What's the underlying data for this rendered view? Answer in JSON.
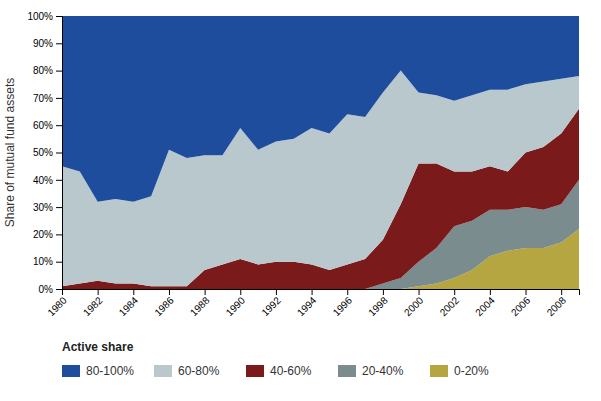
{
  "chart_data": {
    "type": "area",
    "stacked": true,
    "ylabel": "Share of mutual fund assets",
    "legend_title": "Active share",
    "legend": "bottom",
    "grid": false,
    "x": [
      1980,
      1981,
      1982,
      1983,
      1984,
      1985,
      1986,
      1987,
      1988,
      1989,
      1990,
      1991,
      1992,
      1993,
      1994,
      1995,
      1996,
      1997,
      1998,
      1999,
      2000,
      2001,
      2002,
      2003,
      2004,
      2005,
      2006,
      2007,
      2008,
      2009
    ],
    "series": [
      {
        "name": "0-20%",
        "color": "#b5a642",
        "values": [
          0,
          0,
          0,
          0,
          0,
          0,
          0,
          0,
          0,
          0,
          0,
          0,
          0,
          0,
          0,
          0,
          0,
          0,
          0,
          0,
          1,
          2,
          4,
          7,
          12,
          14,
          15,
          15,
          17,
          22
        ]
      },
      {
        "name": "20-40%",
        "color": "#7a8c8e",
        "values": [
          0,
          0,
          0,
          0,
          0,
          0,
          0,
          0,
          0,
          0,
          0,
          0,
          0,
          0,
          0,
          0,
          0,
          0,
          2,
          4,
          9,
          13,
          19,
          18,
          17,
          15,
          15,
          14,
          14,
          18
        ]
      },
      {
        "name": "40-60%",
        "color": "#7b1a1a",
        "values": [
          1,
          2,
          3,
          2,
          2,
          1,
          1,
          1,
          7,
          9,
          11,
          9,
          10,
          10,
          9,
          7,
          9,
          11,
          16,
          27,
          36,
          31,
          20,
          18,
          16,
          14,
          20,
          23,
          26,
          26
        ]
      },
      {
        "name": "60-80%",
        "color": "#b8c8cc",
        "values": [
          44,
          41,
          29,
          31,
          30,
          33,
          50,
          47,
          42,
          40,
          48,
          42,
          44,
          45,
          50,
          50,
          55,
          52,
          54,
          49,
          26,
          25,
          26,
          28,
          28,
          30,
          25,
          24,
          20,
          12
        ]
      },
      {
        "name": "80-100%",
        "color": "#1e4d9e",
        "values": [
          55,
          57,
          68,
          67,
          68,
          66,
          49,
          52,
          51,
          51,
          41,
          49,
          46,
          45,
          41,
          43,
          36,
          37,
          28,
          20,
          28,
          29,
          31,
          29,
          27,
          27,
          25,
          24,
          23,
          22
        ]
      }
    ],
    "xlim": [
      1980,
      2009
    ],
    "xticks": [
      1980,
      1982,
      1984,
      1986,
      1988,
      1990,
      1992,
      1994,
      1996,
      1998,
      2000,
      2002,
      2004,
      2006,
      2008
    ],
    "ylim": [
      0,
      100
    ],
    "yticks": [
      {
        "value": 0,
        "label": "0%"
      },
      {
        "value": 10,
        "label": "10%"
      },
      {
        "value": 20,
        "label": "20%"
      },
      {
        "value": 30,
        "label": "30%"
      },
      {
        "value": 40,
        "label": "40%"
      },
      {
        "value": 50,
        "label": "50%"
      },
      {
        "value": 60,
        "label": "60%"
      },
      {
        "value": 70,
        "label": "70%"
      },
      {
        "value": 80,
        "label": "80%"
      },
      {
        "value": 90,
        "label": "90%"
      },
      {
        "value": 100,
        "label": "100%"
      }
    ]
  }
}
